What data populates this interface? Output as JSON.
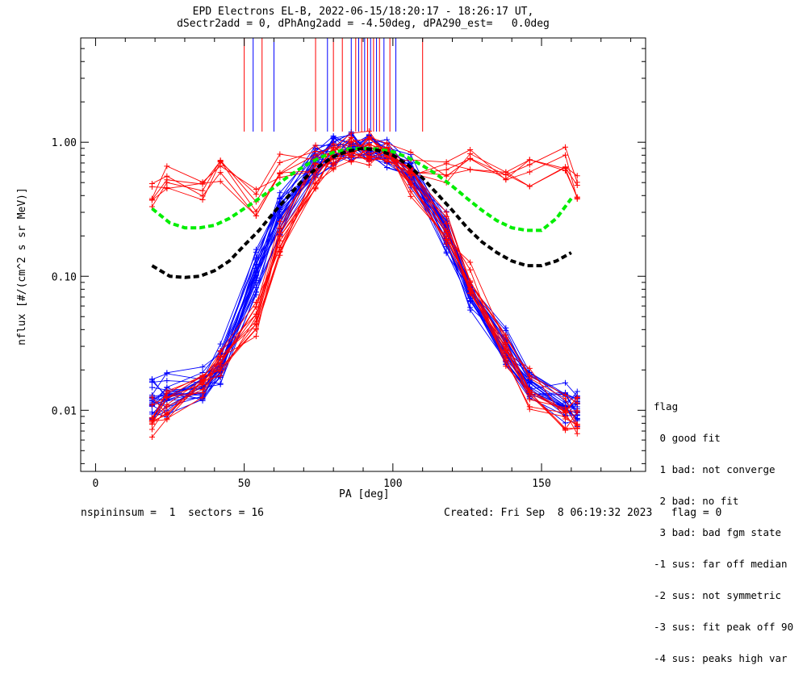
{
  "title": {
    "line1": "EPD Electrons EL-B, 2022-06-15/18:20:17 - 18:26:17 UT,",
    "line2": "dSectr2add = 0, dPhAng2add = -4.50deg, dPA290_est=   0.0deg"
  },
  "footer": {
    "left": "nspininsum =  1  sectors = 16",
    "right": "Created: Fri Sep  8 06:19:32 2023   flag = 0"
  },
  "legend": {
    "title": "flag",
    "items": [
      " 0 good fit",
      " 1 bad: not converge",
      " 2 bad: no fit",
      " 3 bad: bad fgm state",
      "-1 sus: far off median",
      "-2 sus: not symmetric",
      "-3 sus: fit peak off 90",
      "-4 sus: peaks high var"
    ]
  },
  "chart_data": {
    "type": "line",
    "title": "EPD Electrons EL-B, 2022-06-15/18:20:17 - 18:26:17 UT,",
    "xlabel": "PA [deg]",
    "ylabel": "nflux [#/(cm^2 s sr MeV)]",
    "xlim": [
      -5,
      185
    ],
    "ylim": [
      0.0035,
      6.0
    ],
    "yscale": "log",
    "xticks": [
      0,
      50,
      100,
      150
    ],
    "xtick_labels": [
      "0",
      "50",
      "100",
      "150"
    ],
    "yticks": [
      0.01,
      0.1,
      1.0
    ],
    "ytick_labels": [
      "0.01",
      "0.10",
      "1.00"
    ],
    "grid": false,
    "pa_bins": [
      19,
      24,
      36,
      42,
      54,
      62,
      74,
      80,
      86,
      92,
      98,
      106,
      118,
      126,
      138,
      146,
      158,
      162
    ],
    "series": [
      {
        "color": "#0000ff",
        "marker": "+",
        "x": [
          19,
          24,
          36,
          42,
          54,
          62,
          74,
          80,
          86,
          92,
          98,
          106,
          118,
          126,
          138,
          146,
          158,
          162
        ],
        "profiles": [
          [
            0.012,
            0.013,
            0.016,
            0.022,
            0.11,
            0.3,
            0.72,
            0.88,
            0.95,
            0.92,
            0.85,
            0.6,
            0.22,
            0.08,
            0.03,
            0.015,
            0.012,
            0.011
          ],
          [
            0.01,
            0.011,
            0.014,
            0.019,
            0.09,
            0.26,
            0.68,
            0.85,
            0.93,
            0.9,
            0.82,
            0.55,
            0.19,
            0.07,
            0.026,
            0.013,
            0.01,
            0.009
          ],
          [
            0.014,
            0.015,
            0.018,
            0.025,
            0.13,
            0.34,
            0.75,
            0.9,
            0.97,
            0.94,
            0.87,
            0.64,
            0.25,
            0.09,
            0.035,
            0.017,
            0.013,
            0.012
          ],
          [
            0.011,
            0.012,
            0.015,
            0.02,
            0.1,
            0.28,
            0.7,
            0.86,
            0.94,
            0.91,
            0.83,
            0.58,
            0.21,
            0.075,
            0.028,
            0.014,
            0.011,
            0.01
          ]
        ]
      },
      {
        "color": "#ff0000",
        "marker": "+",
        "x": [
          19,
          24,
          36,
          42,
          54,
          62,
          74,
          80,
          86,
          92,
          98,
          106,
          118,
          126,
          138,
          146,
          158,
          162
        ],
        "profiles": [
          [
            0.01,
            0.012,
            0.017,
            0.024,
            0.05,
            0.2,
            0.6,
            0.8,
            0.9,
            0.88,
            0.8,
            0.55,
            0.24,
            0.1,
            0.03,
            0.016,
            0.011,
            0.01
          ],
          [
            0.4,
            0.55,
            0.45,
            0.6,
            0.35,
            0.7,
            0.75,
            0.85,
            0.92,
            0.95,
            0.88,
            0.7,
            0.6,
            0.7,
            0.55,
            0.6,
            0.75,
            0.45
          ],
          [
            0.008,
            0.01,
            0.014,
            0.02,
            0.045,
            0.18,
            0.55,
            0.75,
            0.88,
            0.86,
            0.78,
            0.5,
            0.2,
            0.09,
            0.025,
            0.012,
            0.009,
            0.008
          ]
        ]
      }
    ],
    "fit_curves": [
      {
        "color": "#00ee00",
        "style": "dashed",
        "x": [
          19,
          25,
          30,
          35,
          40,
          45,
          50,
          55,
          60,
          65,
          70,
          75,
          80,
          85,
          90,
          95,
          100,
          105,
          110,
          115,
          120,
          125,
          130,
          135,
          140,
          145,
          150,
          155,
          160
        ],
        "y": [
          0.32,
          0.25,
          0.23,
          0.23,
          0.24,
          0.27,
          0.32,
          0.38,
          0.46,
          0.56,
          0.66,
          0.76,
          0.84,
          0.89,
          0.9,
          0.89,
          0.85,
          0.77,
          0.67,
          0.57,
          0.47,
          0.38,
          0.31,
          0.26,
          0.23,
          0.22,
          0.22,
          0.27,
          0.38
        ]
      },
      {
        "color": "#000000",
        "style": "dashed",
        "x": [
          19,
          25,
          30,
          35,
          40,
          45,
          50,
          55,
          60,
          65,
          70,
          75,
          80,
          85,
          90,
          95,
          100,
          105,
          110,
          115,
          120,
          125,
          130,
          135,
          140,
          145,
          150,
          155,
          160
        ],
        "y": [
          0.12,
          0.1,
          0.098,
          0.1,
          0.11,
          0.13,
          0.17,
          0.22,
          0.3,
          0.4,
          0.53,
          0.66,
          0.78,
          0.86,
          0.9,
          0.87,
          0.8,
          0.68,
          0.54,
          0.41,
          0.31,
          0.23,
          0.18,
          0.15,
          0.13,
          0.12,
          0.12,
          0.13,
          0.15
        ]
      }
    ],
    "vertical_lines": {
      "x": [
        50,
        53,
        56,
        60,
        74,
        78,
        80,
        83,
        86,
        87.5,
        88.5,
        89.5,
        90.5,
        91.5,
        92.5,
        93.5,
        94.5,
        95.5,
        97,
        99,
        101,
        110
      ],
      "colors": [
        "#ff0000",
        "#0000ff",
        "#ff0000",
        "#0000ff",
        "#ff0000",
        "#0000ff",
        "#ff0000",
        "#ff0000",
        "#0000ff",
        "#ff0000",
        "#0000ff",
        "#ff0000",
        "#0000ff",
        "#ff0000",
        "#0000ff",
        "#ff0000",
        "#0000ff",
        "#ff0000",
        "#0000ff",
        "#ff0000",
        "#0000ff",
        "#ff0000"
      ],
      "y_from": 1.2,
      "y_to": 6.0
    }
  }
}
